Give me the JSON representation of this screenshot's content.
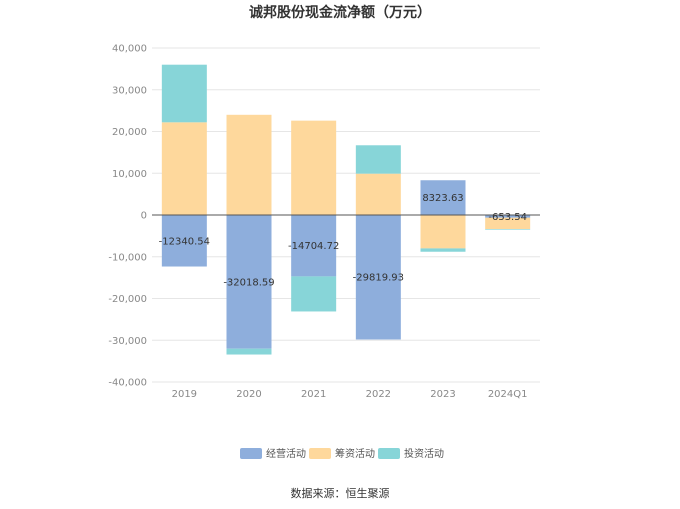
{
  "chart_data": {
    "type": "bar",
    "stacked": true,
    "title": "诚邦股份现金流净额（万元）",
    "categories": [
      "2019",
      "2020",
      "2021",
      "2022",
      "2023",
      "2024Q1"
    ],
    "series": [
      {
        "name": "经营活动",
        "color": "#8eaedc",
        "values": [
          -12340.54,
          -32018.59,
          -14704.72,
          -29819.93,
          8323.63,
          -653.54
        ]
      },
      {
        "name": "筹资活动",
        "color": "#fed89c",
        "values": [
          22200,
          24000,
          22600,
          9900,
          -8000,
          -2700
        ]
      },
      {
        "name": "投资活动",
        "color": "#87d5d8",
        "values": [
          13800,
          -1400,
          -8400,
          6800,
          -800,
          -150
        ]
      }
    ],
    "data_labels": [
      "-12340.54",
      "-32018.59",
      "-14704.72",
      "-29819.93",
      "8323.63",
      "-653.54"
    ],
    "ylim": [
      -40000,
      40000
    ],
    "yticks": [
      -40000,
      -30000,
      -20000,
      -10000,
      0,
      10000,
      20000,
      30000,
      40000
    ],
    "ytick_labels": [
      "-40,000",
      "-30,000",
      "-20,000",
      "-10,000",
      "0",
      "10,000",
      "20,000",
      "30,000",
      "40,000"
    ],
    "grid": true,
    "legend": "bottom-center",
    "source": "数据来源：恒生聚源"
  }
}
